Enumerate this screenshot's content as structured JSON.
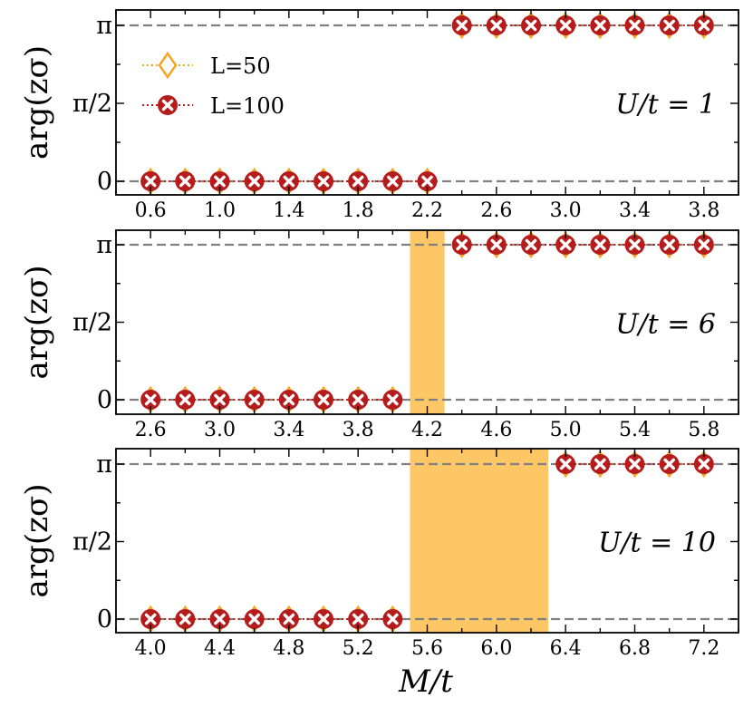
{
  "chart_data": {
    "type": "line",
    "xlabel": "M/t",
    "ylabel": "arg(zσ)",
    "legend": {
      "placement": "top-left of first panel",
      "entries": [
        {
          "name": "L=50",
          "marker": "diamond",
          "color": "#f5a623"
        },
        {
          "name": "L=100",
          "marker": "circle-x",
          "color": "#b71c1c"
        }
      ]
    },
    "colors": {
      "l50": "#f5a623",
      "l100": "#b71c1c",
      "reference_line": "#808080",
      "shaded_region": "#fdc766"
    },
    "panels": [
      {
        "annotation": "U/t = 1",
        "xlim": [
          0.4,
          4.0
        ],
        "xticks": [
          0.6,
          1.0,
          1.4,
          1.8,
          2.2,
          2.6,
          3.0,
          3.4,
          3.8
        ],
        "xtick_labels": [
          "0.6",
          "1.0",
          "1.4",
          "1.8",
          "2.2",
          "2.6",
          "3.0",
          "3.4",
          "3.8"
        ],
        "yticks": [
          "0",
          "π/2",
          "π"
        ],
        "shaded": null,
        "x": [
          0.6,
          0.8,
          1.0,
          1.2,
          1.4,
          1.6,
          1.8,
          2.0,
          2.2,
          2.4,
          2.6,
          2.8,
          3.0,
          3.2,
          3.4,
          3.6,
          3.8
        ],
        "series": [
          {
            "name": "L=50",
            "y_over_pi": [
              0,
              0,
              0,
              0,
              0,
              0,
              0,
              0,
              0,
              1,
              1,
              1,
              1,
              1,
              1,
              1,
              1
            ]
          },
          {
            "name": "L=100",
            "y_over_pi": [
              0,
              0,
              0,
              0,
              0,
              0,
              0,
              0,
              0,
              1,
              1,
              1,
              1,
              1,
              1,
              1,
              1
            ]
          }
        ]
      },
      {
        "annotation": "U/t = 6",
        "xlim": [
          2.4,
          6.0
        ],
        "xticks": [
          2.6,
          3.0,
          3.4,
          3.8,
          4.2,
          4.6,
          5.0,
          5.4,
          5.8
        ],
        "xtick_labels": [
          "2.6",
          "3.0",
          "3.4",
          "3.8",
          "4.2",
          "4.6",
          "5.0",
          "5.4",
          "5.8"
        ],
        "yticks": [
          "0",
          "π/2",
          "π"
        ],
        "shaded": [
          4.1,
          4.3
        ],
        "x": [
          2.6,
          2.8,
          3.0,
          3.2,
          3.4,
          3.6,
          3.8,
          4.0,
          4.4,
          4.6,
          4.8,
          5.0,
          5.2,
          5.4,
          5.6,
          5.8
        ],
        "series": [
          {
            "name": "L=50",
            "y_over_pi": [
              0,
              0,
              0,
              0,
              0,
              0,
              0,
              0,
              1,
              1,
              1,
              1,
              1,
              1,
              1,
              1
            ]
          },
          {
            "name": "L=100",
            "y_over_pi": [
              0,
              0,
              0,
              0,
              0,
              0,
              0,
              0,
              1,
              1,
              1,
              1,
              1,
              1,
              1,
              1
            ]
          }
        ]
      },
      {
        "annotation": "U/t = 10",
        "xlim": [
          3.8,
          7.4
        ],
        "xticks": [
          4.0,
          4.4,
          4.8,
          5.2,
          5.6,
          6.0,
          6.4,
          6.8,
          7.2
        ],
        "xtick_labels": [
          "4.0",
          "4.4",
          "4.8",
          "5.2",
          "5.6",
          "6.0",
          "6.4",
          "6.8",
          "7.2"
        ],
        "yticks": [
          "0",
          "π/2",
          "π"
        ],
        "shaded": [
          5.5,
          6.3
        ],
        "x": [
          4.0,
          4.2,
          4.4,
          4.6,
          4.8,
          5.0,
          5.2,
          5.4,
          6.4,
          6.6,
          6.8,
          7.0,
          7.2
        ],
        "series": [
          {
            "name": "L=50",
            "y_over_pi": [
              0,
              0,
              0,
              0,
              0,
              0,
              0,
              0,
              1,
              1,
              1,
              1,
              1
            ]
          },
          {
            "name": "L=100",
            "y_over_pi": [
              0,
              0,
              0,
              0,
              0,
              0,
              0,
              0,
              1,
              1,
              1,
              1,
              1
            ]
          }
        ]
      }
    ]
  }
}
